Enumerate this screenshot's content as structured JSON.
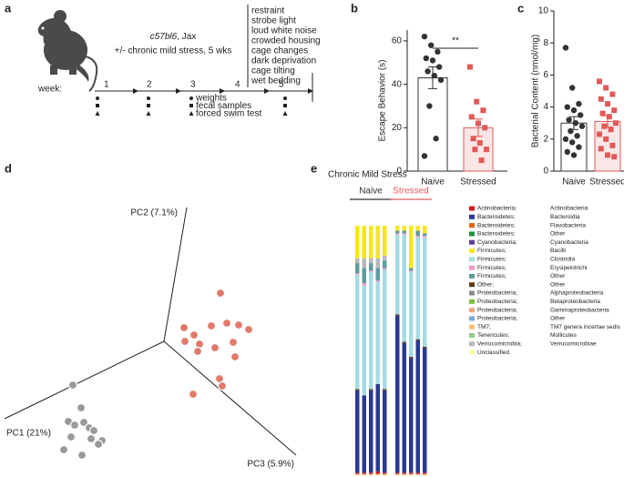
{
  "panels": [
    "a",
    "b",
    "c",
    "d",
    "e"
  ],
  "timeline": {
    "strain": "c57bl6",
    "supplier": ", Jax",
    "protocol": "+/- chronic mild stress, 5 wks",
    "week_label": "week:",
    "weeks": [
      "1",
      "2",
      "3",
      "4",
      "5"
    ],
    "measures": [
      "weights",
      "fecal samples",
      "forced swim test"
    ],
    "stressors": [
      "restraint",
      "strobe light",
      "loud white noise",
      "crowded housing",
      "cage changes",
      "dark deprivation",
      "cage tilting",
      "wet bedding"
    ]
  },
  "chart_data": [
    {
      "type": "bar",
      "ylabel": "Escape Behavior (s)",
      "categories": [
        "Naive",
        "Stressed"
      ],
      "values": [
        43,
        20
      ],
      "errors": [
        5,
        4
      ],
      "points": [
        [
          62,
          58,
          55,
          52,
          51,
          48,
          46,
          44,
          42,
          30,
          15,
          7
        ],
        [
          48,
          32,
          28,
          25,
          22,
          20,
          15,
          13,
          10,
          10,
          5
        ]
      ],
      "colors": [
        "#333333",
        "#e05a5a"
      ],
      "ylim": [
        0,
        65
      ],
      "yticks": [
        0,
        20,
        40,
        60
      ],
      "annotation": "**"
    },
    {
      "type": "bar",
      "ylabel": "Bacterial Content (nmol/mg)",
      "categories": [
        "Naive",
        "Stressed"
      ],
      "values": [
        3.0,
        3.1
      ],
      "errors": [
        0.4,
        0.35
      ],
      "points": [
        [
          7.7,
          5.2,
          4.2,
          4.0,
          3.8,
          3.5,
          3.2,
          3.0,
          2.8,
          2.5,
          2.2,
          2.0,
          1.8,
          1.5,
          1.2,
          1.0
        ],
        [
          5.6,
          5.2,
          4.8,
          4.5,
          4.2,
          3.8,
          3.6,
          3.4,
          3.0,
          2.8,
          2.6,
          2.3,
          2.0,
          1.6,
          1.4,
          1.0,
          0.9
        ]
      ],
      "colors": [
        "#333333",
        "#e05a5a"
      ],
      "ylim": [
        0,
        10
      ],
      "yticks": [
        0,
        2,
        4,
        6,
        8,
        10
      ]
    },
    {
      "type": "scatter",
      "xlim": [
        0,
        330
      ],
      "ylim": [
        0,
        320
      ],
      "origin": [
        180,
        150
      ],
      "axes": [
        {
          "label": "PC1 (21%)",
          "end": [
            5,
            65
          ]
        },
        {
          "label": "PC2 (7.1%)",
          "end": [
            205,
            297
          ]
        },
        {
          "label": "PC3 (5.9%)",
          "end": [
            325,
            25
          ]
        }
      ],
      "series": [
        {
          "color": "#e07a6a",
          "x": [
            242,
            202,
            213,
            232,
            249,
            262,
            273,
            219,
            236,
            256,
            203,
            217,
            258,
            241,
            244,
            212
          ],
          "y": [
            203,
            165,
            157,
            167,
            170,
            168,
            163,
            147,
            143,
            149,
            150,
            139,
            133,
            109,
            101,
            92
          ]
        },
        {
          "color": "#999999",
          "x": [
            80,
            89,
            75,
            92,
            82,
            98,
            103,
            78,
            100,
            112,
            70,
            90,
            108
          ],
          "y": [
            102,
            77,
            62,
            61,
            58,
            55,
            52,
            45,
            43,
            41,
            31,
            25,
            37
          ]
        }
      ]
    },
    {
      "type": "stacked_bar",
      "title": "Chronic Mild Stress",
      "ylim": [
        0,
        100
      ],
      "groups": [
        {
          "name": "Naive",
          "color": "#333333"
        },
        {
          "name": "Stressed",
          "color": "#e05a5a"
        }
      ],
      "series": [
        {
          "phylum": "Actinobacteria;",
          "class": "Actinobacteria",
          "color": "#d7191c",
          "values": [
            0.5,
            0.5,
            0.5,
            1,
            0.5,
            0.5,
            0.5,
            0.5,
            0.5,
            0.5
          ]
        },
        {
          "phylum": "Bacteroidetes;",
          "class": "Bacteroidia",
          "color": "#2b3990",
          "values": [
            33,
            31,
            33,
            35,
            33,
            63,
            52,
            46,
            53,
            50
          ]
        },
        {
          "phylum": "Bacteroidetes;",
          "class": "Flavobacteria",
          "color": "#e66101",
          "values": [
            0,
            0,
            0,
            0,
            0,
            0,
            0,
            0,
            0,
            0
          ]
        },
        {
          "phylum": "Bacteroidetes;",
          "class": "Other",
          "color": "#1a9641",
          "values": [
            0,
            0,
            0,
            0,
            0,
            0,
            0,
            0,
            0,
            0
          ]
        },
        {
          "phylum": "Cyanobacteria;",
          "class": "Cyanobacteria",
          "color": "#5e3c99",
          "values": [
            0,
            0,
            0,
            0,
            0,
            0,
            0,
            0,
            0,
            0
          ]
        },
        {
          "phylum": "Firmicutes;",
          "class": "Bacilli",
          "color": "#f5e61a",
          "values": [
            13,
            13,
            13,
            13,
            12,
            2,
            2,
            17,
            2,
            3
          ]
        },
        {
          "phylum": "Firmicutes;",
          "class": "Clostridia",
          "color": "#a6dbe3",
          "values": [
            46,
            44,
            47,
            41,
            48,
            32,
            43,
            34,
            41,
            44
          ]
        },
        {
          "phylum": "Firmicutes;",
          "class": "Erysipelotrichi",
          "color": "#f29ac4",
          "values": [
            0.5,
            1,
            0.5,
            0.5,
            0.5,
            0.5,
            0.5,
            0.5,
            0.5,
            0.5
          ]
        },
        {
          "phylum": "Firmicutes;",
          "class": "Other",
          "color": "#5f9c9c",
          "values": [
            4,
            6,
            3,
            5,
            3,
            1,
            1,
            1,
            2,
            1
          ]
        },
        {
          "phylum": "Other;",
          "class": "Other",
          "color": "#5a3a1a",
          "values": [
            0.5,
            0,
            0.5,
            0,
            0.5,
            0.5,
            0.5,
            0.5,
            0.5,
            0.5
          ]
        },
        {
          "phylum": "Proteobacteria;",
          "class": "Alphaproteobacteria",
          "color": "#8c8c8c",
          "values": [
            0,
            0,
            0,
            0,
            0,
            0,
            0,
            0,
            0,
            0
          ]
        },
        {
          "phylum": "Proteobacteria;",
          "class": "Betaproteobacteria",
          "color": "#7fbf3f",
          "values": [
            0,
            0,
            0,
            0,
            0,
            0,
            0,
            0,
            0,
            0
          ]
        },
        {
          "phylum": "Proteobacteria;",
          "class": "Gammaproteobacteria",
          "color": "#f4a582",
          "values": [
            0,
            0,
            0,
            0,
            0,
            0,
            0,
            0,
            0,
            0
          ]
        },
        {
          "phylum": "Proteobacteria;",
          "class": "Other",
          "color": "#7ea6d8",
          "values": [
            0,
            0,
            0,
            0,
            0,
            0,
            0,
            0,
            0,
            0
          ]
        },
        {
          "phylum": "TM7;",
          "class": "TM7 genera incertae sedis",
          "color": "#fdbf6f",
          "values": [
            0.5,
            0.5,
            0.5,
            0.5,
            0.5,
            0.5,
            0.5,
            0.5,
            0.5,
            0.5
          ]
        },
        {
          "phylum": "Tenericutes;",
          "class": "Mollicutes",
          "color": "#8fc98f",
          "values": [
            0,
            0,
            0,
            0,
            0,
            0,
            0,
            0,
            0,
            0
          ]
        },
        {
          "phylum": "Verrucomicrobia;",
          "class": "Verrucomicrobiae",
          "color": "#b8b8b8",
          "values": [
            2,
            4,
            2,
            4,
            2,
            0,
            0,
            0,
            0,
            0
          ]
        },
        {
          "phylum": "Unclassified",
          "color": "#fff9a0",
          "values": [
            0,
            0,
            0,
            0,
            0,
            0,
            0,
            0,
            0,
            0
          ]
        }
      ]
    }
  ]
}
